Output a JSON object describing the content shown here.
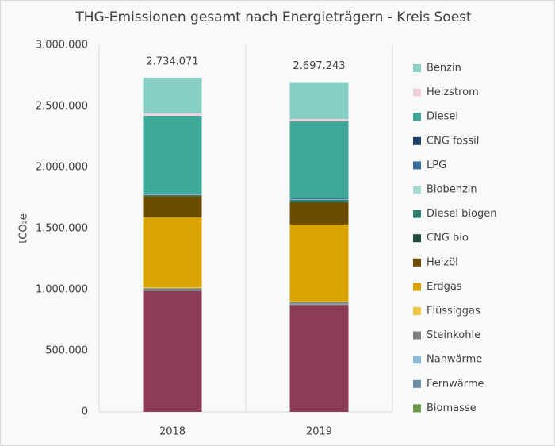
{
  "chart_data": {
    "type": "stacked_bar",
    "title": "THG-Emissionen gesamt nach Energieträgern - Kreis Soest",
    "y_label": "tCO₂e",
    "categories": [
      "2018",
      "2019"
    ],
    "ylim": [
      0,
      3000000
    ],
    "yticks": [
      0,
      {
        "value": 500000,
        "label": "500.000"
      },
      {
        "value": 1000000,
        "label": "1.000.000"
      },
      {
        "value": 1500000,
        "label": "1.500.000"
      },
      {
        "value": 2000000,
        "label": "2.000.000"
      },
      {
        "value": 2500000,
        "label": "2.500.000"
      },
      {
        "value": 3000000,
        "label": "3.000.000"
      }
    ],
    "totals": {
      "values": [
        2734071,
        2697243
      ],
      "value_labels": [
        "2.734.071",
        "2.697.243"
      ]
    },
    "series": [
      {
        "name": null,
        "color": "#8b3d55",
        "values": [
          990000,
          875000
        ]
      },
      {
        "name": "Biomasse",
        "color": "#6a9a4a",
        "values": [
          3000,
          3000
        ]
      },
      {
        "name": "Fernwärme",
        "color": "#6a8fa6",
        "values": [
          5000,
          5000
        ]
      },
      {
        "name": "Nahwärme",
        "color": "#8db8d6",
        "values": [
          2000,
          2000
        ]
      },
      {
        "name": "Steinkohle",
        "color": "#7f7f7f",
        "values": [
          12000,
          14000
        ]
      },
      {
        "name": "Flüssiggas",
        "color": "#f5c842",
        "values": [
          6000,
          6000
        ]
      },
      {
        "name": "Erdgas",
        "color": "#d9a300",
        "values": [
          572000,
          628000
        ]
      },
      {
        "name": "Heizöl",
        "color": "#6b4c00",
        "values": [
          175000,
          181000
        ]
      },
      {
        "name": "CNG bio",
        "color": "#1f4a3c",
        "values": [
          1000,
          1000
        ]
      },
      {
        "name": "Diesel biogen",
        "color": "#2e7d6a",
        "values": [
          8000,
          20000
        ]
      },
      {
        "name": "Biobenzin",
        "color": "#a8dcd2",
        "values": [
          3000,
          3000
        ]
      },
      {
        "name": "LPG",
        "color": "#3a6fa0",
        "values": [
          6000,
          7000
        ]
      },
      {
        "name": "CNG fossil",
        "color": "#1f3f66",
        "values": [
          2000,
          2000
        ]
      },
      {
        "name": "Diesel",
        "color": "#3fa898",
        "values": [
          637000,
          630000
        ]
      },
      {
        "name": "Heizstrom",
        "color": "#f0d0dc",
        "values": [
          20000,
          19000
        ]
      },
      {
        "name": "Benzin",
        "color": "#88d0c6",
        "values": [
          292071,
          301243
        ]
      }
    ]
  }
}
